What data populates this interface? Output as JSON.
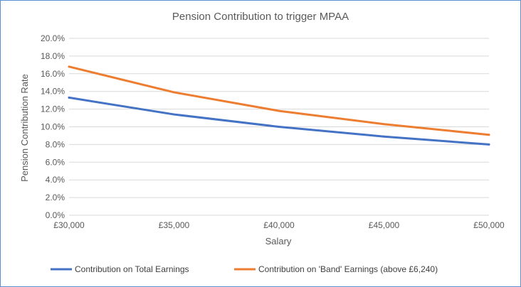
{
  "chart_data": {
    "type": "line",
    "title": "Pension Contribution to trigger MPAA",
    "xlabel": "Salary",
    "ylabel": "Pension Contribution Rate",
    "x": [
      30000,
      35000,
      40000,
      45000,
      50000
    ],
    "x_tick_labels": [
      "£30,000",
      "£35,000",
      "£40,000",
      "£45,000",
      "£50,000"
    ],
    "ylim": [
      0,
      20
    ],
    "y_ticks": [
      0,
      2,
      4,
      6,
      8,
      10,
      12,
      14,
      16,
      18,
      20
    ],
    "y_tick_labels": [
      "0.0%",
      "2.0%",
      "4.0%",
      "6.0%",
      "8.0%",
      "10.0%",
      "12.0%",
      "14.0%",
      "16.0%",
      "18.0%",
      "20.0%"
    ],
    "grid": true,
    "legend_position": "bottom",
    "series": [
      {
        "name": "Contribution on Total Earnings",
        "color": "#4472c4",
        "values": [
          13.3,
          11.4,
          10.0,
          8.9,
          8.0
        ]
      },
      {
        "name": "Contribution on 'Band' Earnings (above £6,240)",
        "color": "#ed7d31",
        "values": [
          16.8,
          13.9,
          11.8,
          10.3,
          9.1
        ]
      }
    ]
  }
}
